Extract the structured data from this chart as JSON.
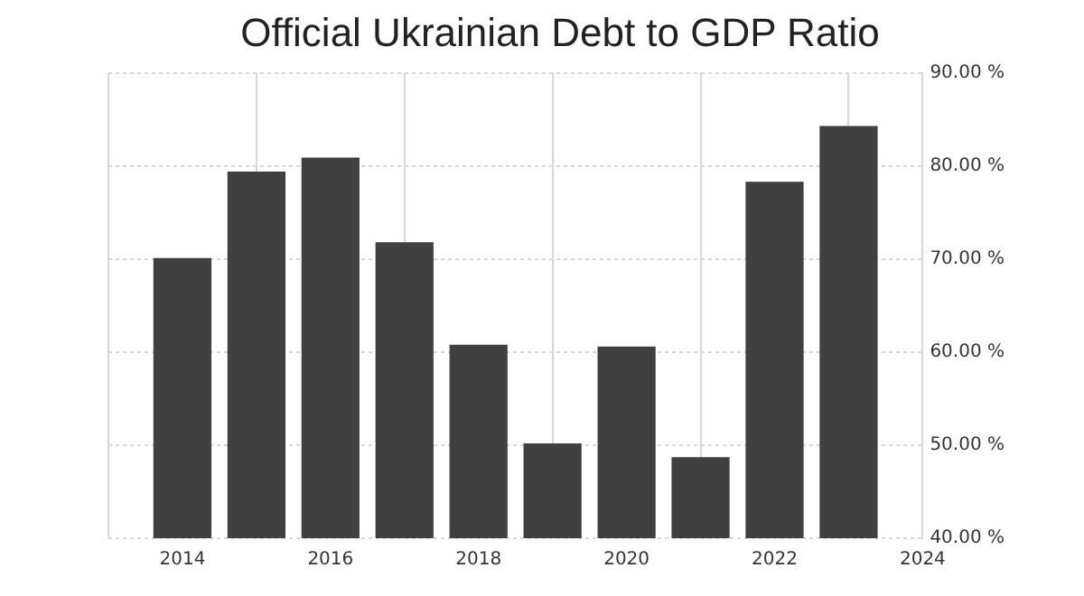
{
  "chart_data": {
    "type": "bar",
    "title": "Official Ukrainian Debt to GDP Ratio",
    "x": [
      2014,
      2015,
      2016,
      2017,
      2018,
      2019,
      2020,
      2021,
      2022,
      2023
    ],
    "values": [
      70.1,
      79.4,
      80.9,
      71.8,
      60.8,
      50.2,
      60.6,
      48.7,
      78.3,
      84.3
    ],
    "color": "#404040",
    "xlim": [
      2013,
      2024
    ],
    "xticks": [
      2014,
      2016,
      2018,
      2020,
      2022,
      2024
    ],
    "ylim": [
      40,
      90
    ],
    "yticks": [
      {
        "value": 40,
        "label": "40.00 %"
      },
      {
        "value": 50,
        "label": "50.00 %"
      },
      {
        "value": 60,
        "label": "60.00 %"
      },
      {
        "value": 70,
        "label": "70.00 %"
      },
      {
        "value": 80,
        "label": "80.00 %"
      },
      {
        "value": 90,
        "label": "90.00 %"
      }
    ],
    "grid": true,
    "legend": false
  }
}
